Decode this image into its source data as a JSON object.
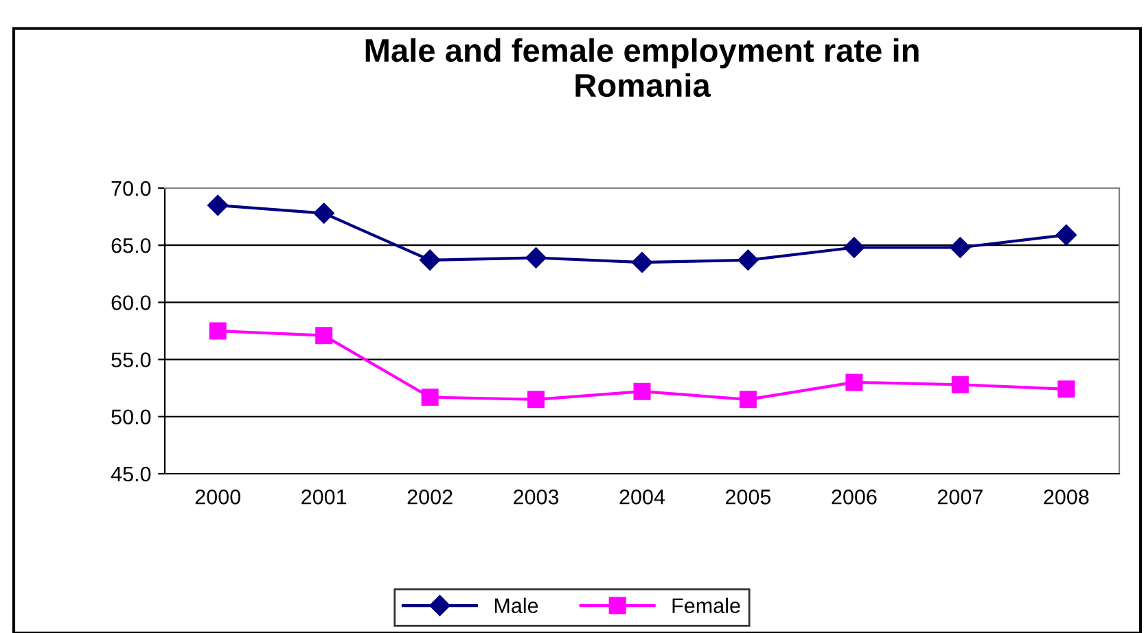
{
  "chart_data": {
    "type": "line",
    "title": "Male and female employment rate in\nRomania",
    "categories": [
      "2000",
      "2001",
      "2002",
      "2003",
      "2004",
      "2005",
      "2006",
      "2007",
      "2008"
    ],
    "series": [
      {
        "name": "Male",
        "color": "#000080",
        "marker": "diamond",
        "values": [
          68.5,
          67.8,
          63.7,
          63.9,
          63.5,
          63.7,
          64.8,
          64.8,
          65.9
        ]
      },
      {
        "name": "Female",
        "color": "#ff00ff",
        "marker": "square",
        "values": [
          57.5,
          57.1,
          51.7,
          51.5,
          52.2,
          51.5,
          53.0,
          52.8,
          52.4
        ]
      }
    ],
    "ylim": [
      45,
      70
    ],
    "yticks": [
      {
        "value": 45,
        "label": "45.0"
      },
      {
        "value": 50,
        "label": "50.0"
      },
      {
        "value": 55,
        "label": "55.0"
      },
      {
        "value": 60,
        "label": "60.0"
      },
      {
        "value": 65,
        "label": "65.0"
      },
      {
        "value": 70,
        "label": "70.0"
      }
    ],
    "grid": "y",
    "legend": "bottom",
    "line_style": "solid"
  }
}
